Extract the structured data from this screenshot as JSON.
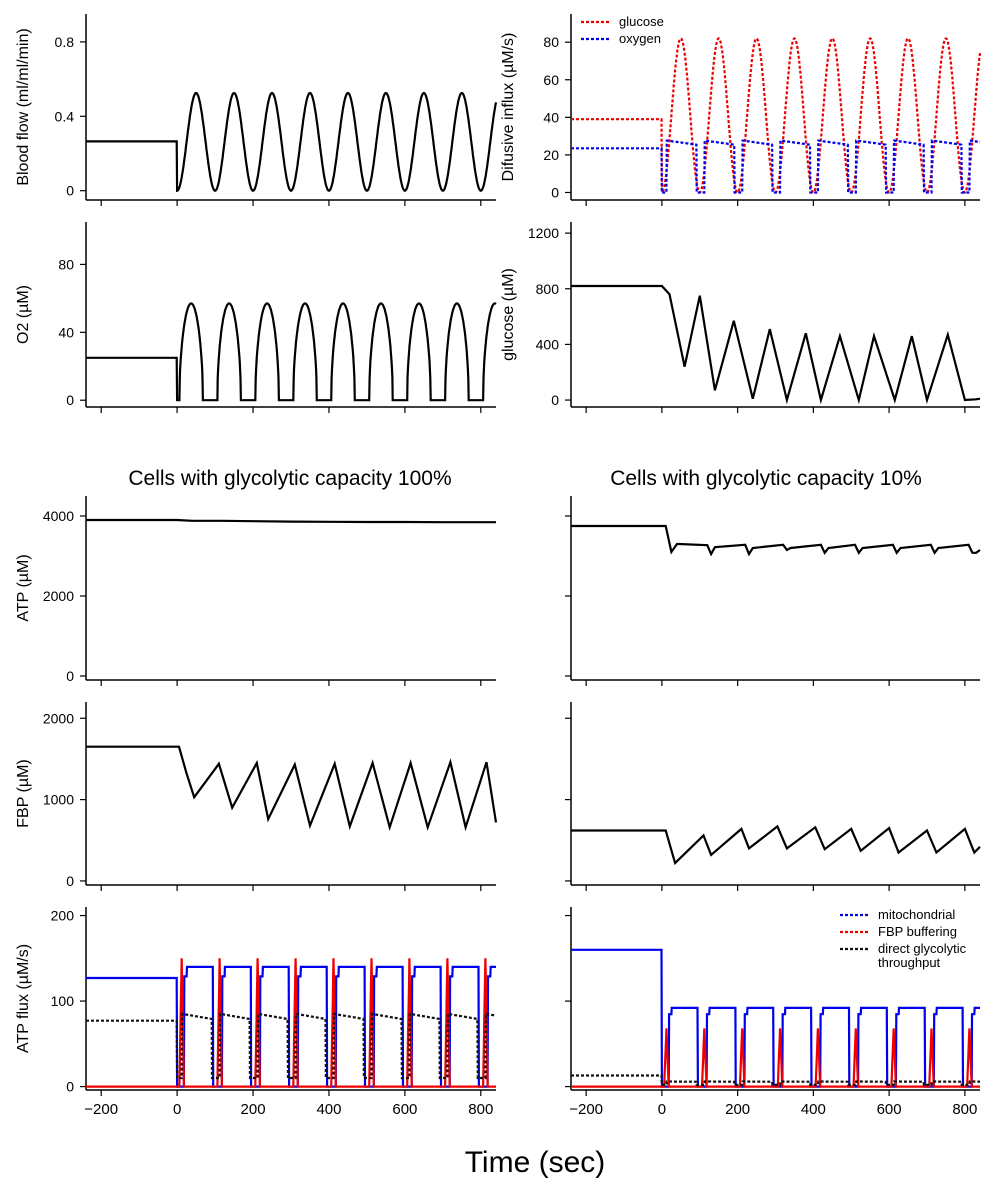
{
  "col_titles": {
    "left": "Cells with glycolytic capacity 100%",
    "right": "Cells with glycolytic capacity 10%"
  },
  "xlabel": "Time (sec)",
  "colors": {
    "black": "#000000",
    "blue": "#0000ee",
    "red": "#ee0000",
    "dark": "#111111"
  },
  "chart_data": [
    {
      "id": "blood-flow",
      "type": "line",
      "ylabel": "Blood flow  (ml/ml/min)",
      "xlim": [
        -240,
        840
      ],
      "ylim": [
        -0.05,
        0.95
      ],
      "yticks": [
        0,
        0.4,
        0.8
      ],
      "ytick_labels": [
        "0",
        "0.4",
        "0.8"
      ],
      "xticks": [
        -200,
        0,
        200,
        400,
        600,
        800
      ],
      "series": [
        {
          "color": "#000000",
          "dash": false,
          "baseline": 0.265,
          "start": 0,
          "period": 100,
          "min": 0,
          "max": 0.525,
          "shape": "cos"
        }
      ]
    },
    {
      "id": "diffusive-influx",
      "type": "line",
      "ylabel": "Difusive influx (µM/s)",
      "xlim": [
        -240,
        840
      ],
      "ylim": [
        -4,
        95
      ],
      "yticks": [
        0,
        20,
        40,
        60,
        80
      ],
      "ytick_labels": [
        "0",
        "20",
        "40",
        "60",
        "80"
      ],
      "xticks": [
        -200,
        0,
        200,
        400,
        600,
        800
      ],
      "legend": {
        "position": "top-left",
        "items": [
          {
            "label": "glucose",
            "color": "#ee0000",
            "dash": true
          },
          {
            "label": "oxygen",
            "color": "#0000ee",
            "dash": true
          }
        ]
      },
      "series": [
        {
          "name": "glucose",
          "color": "#ee0000",
          "dash": true,
          "baseline": 39,
          "start": 0,
          "period": 100,
          "min": 0,
          "max": 82,
          "shape": "cos"
        },
        {
          "name": "oxygen",
          "color": "#0000ee",
          "dash": true,
          "baseline": 23.5,
          "start": 0,
          "period": 100,
          "min": 0,
          "max": 28,
          "shape": "plateau"
        }
      ]
    },
    {
      "id": "o2",
      "type": "line",
      "ylabel": "O2 (µM)",
      "xlim": [
        -240,
        840
      ],
      "ylim": [
        -4,
        105
      ],
      "yticks": [
        0,
        40,
        80
      ],
      "ytick_labels": [
        "0",
        "40",
        "80"
      ],
      "xticks": [
        -200,
        0,
        200,
        400,
        600,
        800
      ],
      "series": [
        {
          "color": "#000000",
          "dash": false,
          "baseline": 25,
          "start": 0,
          "period": 100,
          "min": 0,
          "max": 57,
          "shape": "pulse"
        }
      ]
    },
    {
      "id": "glucose",
      "type": "line",
      "ylabel": "glucose  (µM)",
      "xlim": [
        -240,
        840
      ],
      "ylim": [
        -50,
        1280
      ],
      "yticks": [
        0,
        400,
        800,
        1200
      ],
      "ytick_labels": [
        "0",
        "400",
        "800",
        "1200"
      ],
      "xticks": [
        -200,
        0,
        200,
        400,
        600,
        800
      ],
      "series": [
        {
          "color": "#000000",
          "dash": false,
          "x": [
            -240,
            0,
            20,
            60,
            100,
            140,
            190,
            240,
            285,
            330,
            380,
            420,
            470,
            520,
            560,
            615,
            660,
            700,
            755,
            800,
            830,
            840
          ],
          "y": [
            820,
            820,
            760,
            240,
            750,
            70,
            570,
            10,
            510,
            0,
            480,
            0,
            460,
            0,
            460,
            0,
            460,
            0,
            470,
            0,
            5,
            10
          ]
        }
      ]
    },
    {
      "id": "atp-100",
      "type": "line",
      "ylabel": "ATP (µM)",
      "xlim": [
        -240,
        840
      ],
      "ylim": [
        -100,
        4500
      ],
      "yticks": [
        0,
        2000,
        4000
      ],
      "ytick_labels": [
        "0",
        "2000",
        "4000"
      ],
      "xticks": [
        -200,
        0,
        200,
        400,
        600,
        800
      ],
      "series": [
        {
          "color": "#000000",
          "dash": false,
          "x": [
            -240,
            0,
            40,
            120,
            200,
            300,
            400,
            500,
            600,
            700,
            800,
            840
          ],
          "y": [
            3900,
            3900,
            3880,
            3880,
            3870,
            3860,
            3855,
            3850,
            3850,
            3845,
            3845,
            3845
          ]
        }
      ]
    },
    {
      "id": "atp-10",
      "type": "line",
      "ylabel": "",
      "xlim": [
        -240,
        840
      ],
      "ylim": [
        -100,
        4500
      ],
      "yticks": [
        0,
        2000,
        4000
      ],
      "ytick_labels": [
        "",
        "",
        ""
      ],
      "xticks": [
        -200,
        0,
        200,
        400,
        600,
        800
      ],
      "series": [
        {
          "color": "#000000",
          "dash": false,
          "x": [
            -240,
            10,
            25,
            40,
            45,
            120,
            130,
            140,
            220,
            230,
            240,
            320,
            330,
            340,
            420,
            430,
            440,
            510,
            520,
            530,
            610,
            620,
            630,
            710,
            720,
            730,
            810,
            820,
            830,
            840
          ],
          "y": [
            3750,
            3750,
            3100,
            3300,
            3300,
            3270,
            3050,
            3220,
            3280,
            3050,
            3200,
            3280,
            3150,
            3200,
            3280,
            3080,
            3200,
            3280,
            3080,
            3200,
            3280,
            3080,
            3200,
            3280,
            3080,
            3200,
            3280,
            3080,
            3080,
            3150
          ]
        }
      ]
    },
    {
      "id": "fbp-100",
      "type": "line",
      "ylabel": "FBP (µM)",
      "xlim": [
        -240,
        840
      ],
      "ylim": [
        -50,
        2200
      ],
      "yticks": [
        0,
        1000,
        2000
      ],
      "ytick_labels": [
        "0",
        "1000",
        "2000"
      ],
      "xticks": [
        -200,
        0,
        200,
        400,
        600,
        800
      ],
      "series": [
        {
          "color": "#000000",
          "dash": false,
          "x": [
            -240,
            5,
            25,
            45,
            110,
            145,
            210,
            240,
            310,
            350,
            415,
            455,
            515,
            560,
            615,
            660,
            720,
            760,
            815,
            840
          ],
          "y": [
            1650,
            1650,
            1320,
            1030,
            1440,
            900,
            1450,
            760,
            1430,
            680,
            1440,
            670,
            1450,
            660,
            1450,
            660,
            1460,
            660,
            1460,
            720
          ]
        }
      ]
    },
    {
      "id": "fbp-10",
      "type": "line",
      "ylabel": "",
      "xlim": [
        -240,
        840
      ],
      "ylim": [
        -50,
        2200
      ],
      "yticks": [
        0,
        1000,
        2000
      ],
      "ytick_labels": [
        "",
        "",
        ""
      ],
      "xticks": [
        -200,
        0,
        200,
        400,
        600,
        800
      ],
      "series": [
        {
          "color": "#000000",
          "dash": false,
          "x": [
            -240,
            10,
            35,
            110,
            130,
            210,
            230,
            305,
            330,
            405,
            430,
            500,
            525,
            600,
            625,
            700,
            725,
            800,
            825,
            840
          ],
          "y": [
            620,
            620,
            220,
            560,
            320,
            640,
            400,
            670,
            400,
            660,
            390,
            640,
            370,
            650,
            350,
            620,
            350,
            640,
            350,
            420
          ]
        }
      ]
    },
    {
      "id": "atp-flux-100",
      "type": "line",
      "ylabel": "ATP flux (µM/s)",
      "xlim": [
        -240,
        840
      ],
      "ylim": [
        -4,
        210
      ],
      "yticks": [
        0,
        100,
        200
      ],
      "ytick_labels": [
        "0",
        "100",
        "200"
      ],
      "xticks": [
        -200,
        0,
        200,
        400,
        600,
        800
      ],
      "series": [
        {
          "name": "mitochondrial",
          "color": "#0000ee",
          "dash": false,
          "baseline": 127,
          "start": 0,
          "period": 100,
          "min": 0,
          "max": 140,
          "shape": "square"
        },
        {
          "name": "FBP buffering",
          "color": "#ee0000",
          "dash": false,
          "baseline": 0,
          "start": 0,
          "period": 100,
          "min": 0,
          "max": 150,
          "shape": "spike"
        },
        {
          "name": "direct glycolytic throughput",
          "color": "#111111",
          "dash": true,
          "baseline": 77,
          "start": 0,
          "period": 100,
          "min": 10,
          "max": 86,
          "shape": "plateau"
        }
      ]
    },
    {
      "id": "atp-flux-10",
      "type": "line",
      "ylabel": "",
      "xlim": [
        -240,
        840
      ],
      "ylim": [
        -4,
        210
      ],
      "yticks": [
        0,
        100,
        200
      ],
      "ytick_labels": [
        "",
        "",
        ""
      ],
      "xticks": [
        -200,
        0,
        200,
        400,
        600,
        800
      ],
      "legend": {
        "position": "top-right",
        "items": [
          {
            "label": "mitochondrial",
            "color": "#0000ee",
            "dash": true
          },
          {
            "label": "FBP buffering",
            "color": "#ee0000",
            "dash": true
          },
          {
            "label": "direct glycolytic\nthroughput",
            "color": "#111111",
            "dash": true
          }
        ]
      },
      "series": [
        {
          "name": "mitochondrial",
          "color": "#0000ee",
          "dash": false,
          "baseline": 160,
          "start": 0,
          "period": 100,
          "min": 0,
          "max": 92,
          "shape": "square"
        },
        {
          "name": "FBP buffering",
          "color": "#ee0000",
          "dash": false,
          "baseline": 0,
          "start": 0,
          "period": 100,
          "min": 0,
          "max": 68,
          "shape": "spike"
        },
        {
          "name": "direct glycolytic throughput",
          "color": "#111111",
          "dash": true,
          "baseline": 13,
          "start": 0,
          "period": 100,
          "min": 2,
          "max": 6,
          "shape": "plateau"
        }
      ]
    }
  ]
}
